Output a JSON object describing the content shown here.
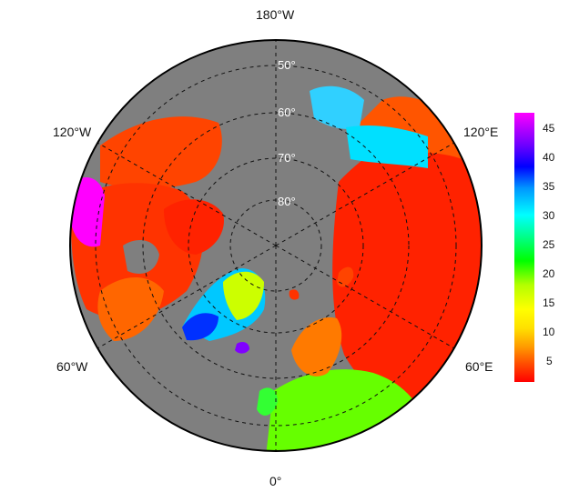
{
  "map": {
    "projection": "north-polar-stereographic",
    "ocean_color": "#7f7f7f",
    "outline_color": "#000000",
    "grid_color": "#111111",
    "grid_style": "dashed",
    "longitude_labels": {
      "top": "180°W",
      "upper_left": "120°W",
      "upper_right": "120°E",
      "lower_left": "60°W",
      "lower_right": "60°E",
      "bottom": "0°"
    },
    "latitude_labels": [
      "50°",
      "60°",
      "70°",
      "80°"
    ],
    "latitude_label_color": "#ffffff"
  },
  "colorbar": {
    "ticks": [
      "45",
      "40",
      "35",
      "30",
      "25",
      "20",
      "15",
      "10",
      "5"
    ],
    "range": [
      1,
      47
    ],
    "colormap": [
      "#ff0000",
      "#ff8000",
      "#ffd200",
      "#ffff00",
      "#c8ff00",
      "#00ff00",
      "#00ff96",
      "#00ffff",
      "#0096ff",
      "#0000ff",
      "#6400ff",
      "#b400ff",
      "#ff00ff"
    ]
  }
}
